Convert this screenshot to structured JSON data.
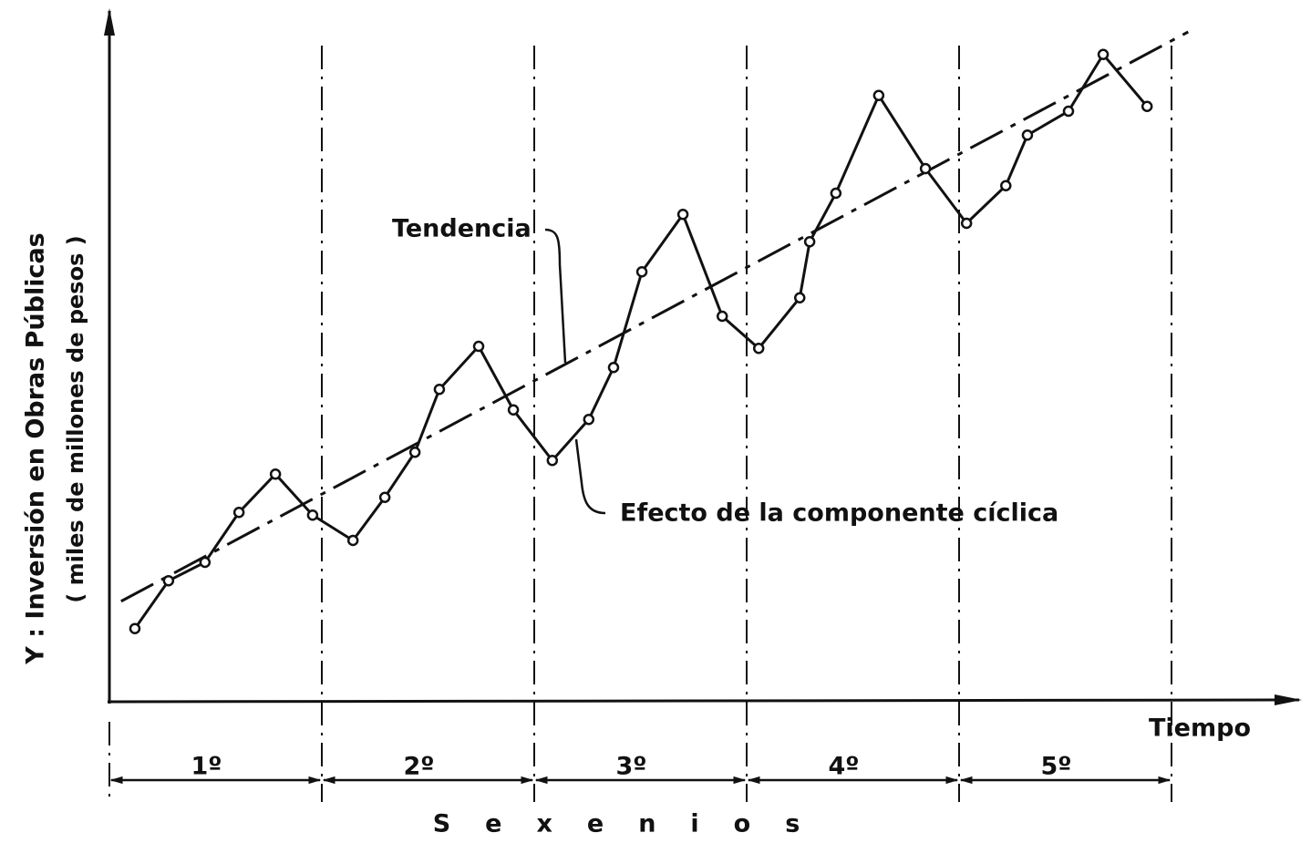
{
  "chart_data": {
    "type": "line",
    "y_label": "Y :  Inversión en Obras Públicas",
    "y_label_2": "( miles de millones de pesos )",
    "x_label": "Tiempo",
    "periods_label": "Sexenios",
    "periods": [
      "1º",
      "2º",
      "3º",
      "4º",
      "5º"
    ],
    "xlim": [
      0,
      30
    ],
    "ylim": [
      0,
      100
    ],
    "xticks": [
      0,
      6,
      12,
      18,
      24,
      30
    ],
    "series": [
      {
        "name": "Tendencia",
        "color": "#111111",
        "style": "dashed",
        "x": [
          0.33,
          30.47
        ],
        "values": [
          14.7,
          98
        ]
      },
      {
        "name": "Efecto de la componente cíclica",
        "color": "#111111",
        "style": "markers",
        "x": [
          0.72,
          1.67,
          2.7,
          3.66,
          4.69,
          5.74,
          6.88,
          7.78,
          8.63,
          9.32,
          10.43,
          11.41,
          12.51,
          13.54,
          14.24,
          15.04,
          16.2,
          17.31,
          18.34,
          19.5,
          19.78,
          20.52,
          21.73,
          23.05,
          24.21,
          25.32,
          25.93,
          27.09,
          28.07,
          29.31
        ],
        "values": [
          10.7,
          17.7,
          20.4,
          27.7,
          33.3,
          27.3,
          23.6,
          29.9,
          36.5,
          45.7,
          52,
          42.7,
          35.3,
          41.3,
          48.9,
          62.9,
          71.3,
          56.4,
          51.7,
          59.1,
          67.3,
          74.4,
          88.7,
          78,
          70,
          75.5,
          82.9,
          86.4,
          94.7,
          87.1
        ]
      }
    ]
  }
}
